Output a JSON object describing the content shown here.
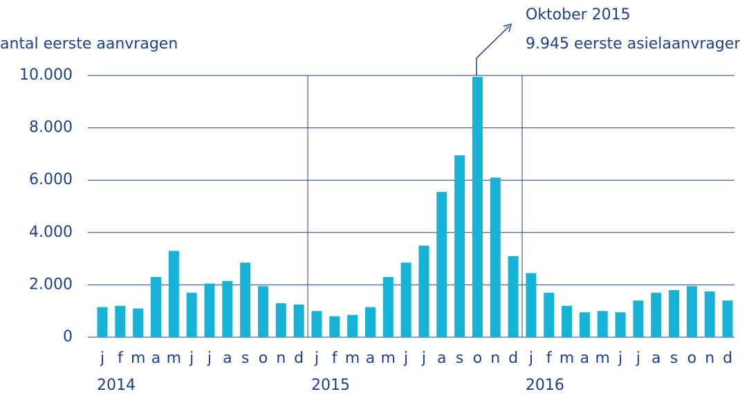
{
  "chart_data": {
    "type": "bar",
    "y_label": "antal eerste aanvragen",
    "annotation": [
      "Oktober 2015",
      "9.945 eerste asielaanvragen"
    ],
    "categories": [
      "j",
      "f",
      "m",
      "a",
      "m",
      "j",
      "j",
      "a",
      "s",
      "o",
      "n",
      "d",
      "j",
      "f",
      "m",
      "a",
      "m",
      "j",
      "j",
      "a",
      "s",
      "o",
      "n",
      "d",
      "j",
      "f",
      "m",
      "a",
      "m",
      "j",
      "j",
      "a",
      "s",
      "o",
      "n",
      "d"
    ],
    "years": [
      "2014",
      "2015",
      "2016"
    ],
    "values": [
      1150,
      1200,
      1100,
      2300,
      3300,
      1700,
      2050,
      2150,
      2850,
      1950,
      1300,
      1250,
      1000,
      800,
      850,
      1150,
      2300,
      2850,
      3500,
      5550,
      6950,
      9945,
      6100,
      3100,
      2450,
      1700,
      1200,
      950,
      1000,
      950,
      1400,
      1700,
      1800,
      1950,
      1750,
      1400
    ],
    "color": "#17b3d6",
    "ylim": [
      0,
      10000
    ],
    "yticks": [
      0,
      {
        "value": 2000,
        "label": "2.000"
      },
      {
        "value": 4000,
        "label": "4.000"
      },
      {
        "value": 6000,
        "label": "6.000"
      },
      {
        "value": 8000,
        "label": "8.000"
      },
      {
        "value": 10000,
        "label": "10.000"
      }
    ],
    "grid": true
  }
}
